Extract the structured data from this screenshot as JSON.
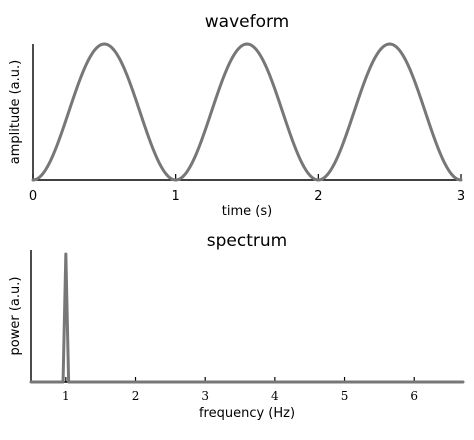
{
  "chart_data": [
    {
      "type": "line",
      "title": "waveform",
      "xlabel": "time (s)",
      "ylabel": "amplitude (a.u.)",
      "xlim": [
        0,
        3
      ],
      "ylim": [
        0,
        1
      ],
      "x_ticks": [
        "0",
        "1",
        "2",
        "3"
      ],
      "y_ticks": [],
      "grid": false,
      "series": [
        {
          "color": "#777777",
          "x": [
            0,
            0.125,
            0.25,
            0.375,
            0.5,
            0.625,
            0.75,
            0.875,
            1.0,
            1.125,
            1.25,
            1.375,
            1.5,
            1.625,
            1.75,
            1.875,
            2.0,
            2.125,
            2.25,
            2.375,
            2.5,
            2.625,
            2.75,
            2.875,
            3.0
          ],
          "y": [
            0,
            0.146,
            0.5,
            0.854,
            1,
            0.854,
            0.5,
            0.146,
            0,
            0.146,
            0.5,
            0.854,
            1,
            0.854,
            0.5,
            0.146,
            0,
            0.146,
            0.5,
            0.854,
            1,
            0.854,
            0.5,
            0.146,
            0
          ]
        }
      ]
    },
    {
      "type": "line",
      "title": "spectrum",
      "xlabel": "frequency (Hz)",
      "ylabel": "power (a.u.)",
      "xlim": [
        0.5,
        6.7
      ],
      "ylim": [
        0,
        1
      ],
      "x_ticks": [
        "1",
        "2",
        "3",
        "4",
        "5",
        "6"
      ],
      "y_ticks": [],
      "grid": false,
      "series": [
        {
          "color": "#777777",
          "x": [
            0.5,
            0.96,
            1.0,
            1.04,
            6.7
          ],
          "y": [
            0,
            0,
            0.97,
            0,
            0
          ]
        }
      ]
    }
  ]
}
